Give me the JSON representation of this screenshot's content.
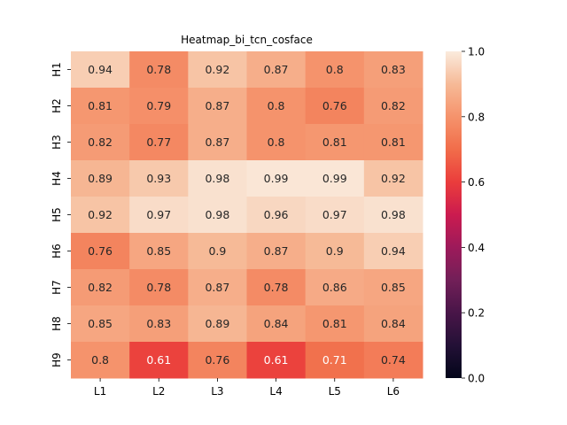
{
  "chart_data": {
    "type": "heatmap",
    "title": "Heatmap_bi_tcn_cosface",
    "xlabel": "",
    "ylabel": "",
    "x_categories": [
      "L1",
      "L2",
      "L3",
      "L4",
      "L5",
      "L6"
    ],
    "y_categories": [
      "H1",
      "H2",
      "H3",
      "H4",
      "H5",
      "H6",
      "H7",
      "H8",
      "H9"
    ],
    "values": [
      [
        0.94,
        0.78,
        0.92,
        0.87,
        0.8,
        0.83
      ],
      [
        0.81,
        0.79,
        0.87,
        0.8,
        0.76,
        0.82
      ],
      [
        0.82,
        0.77,
        0.87,
        0.8,
        0.81,
        0.81
      ],
      [
        0.89,
        0.93,
        0.98,
        0.99,
        0.99,
        0.92
      ],
      [
        0.92,
        0.97,
        0.98,
        0.96,
        0.97,
        0.98
      ],
      [
        0.76,
        0.85,
        0.9,
        0.87,
        0.9,
        0.94
      ],
      [
        0.82,
        0.78,
        0.87,
        0.78,
        0.86,
        0.85
      ],
      [
        0.85,
        0.83,
        0.89,
        0.84,
        0.81,
        0.84
      ],
      [
        0.8,
        0.61,
        0.76,
        0.61,
        0.71,
        0.74
      ]
    ],
    "colorbar": {
      "min": 0.0,
      "max": 1.0,
      "ticks": [
        "0.0",
        "0.2",
        "0.4",
        "0.6",
        "0.8",
        "1.0"
      ],
      "tick_values": [
        0.0,
        0.2,
        0.4,
        0.6,
        0.8,
        1.0
      ]
    },
    "colormap": "rocket",
    "annotations": true
  }
}
